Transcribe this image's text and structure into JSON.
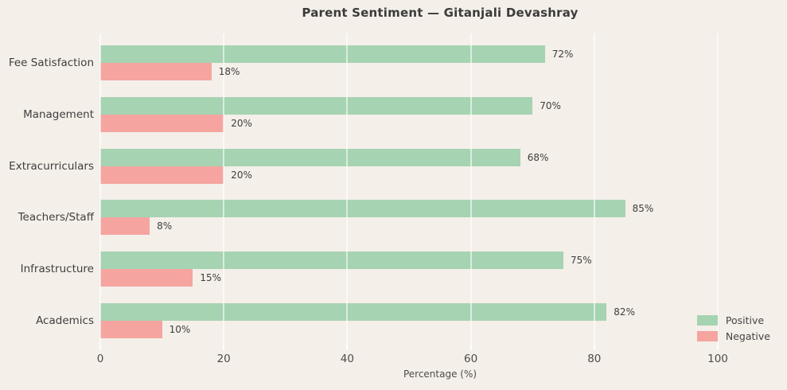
{
  "chart_data": {
    "type": "bar",
    "orientation": "horizontal",
    "title": "Parent Sentiment — Gitanjali Devashray",
    "xlabel": "Percentage (%)",
    "categories": [
      "Fee Satisfaction",
      "Management",
      "Extracurriculars",
      "Teachers/Staff",
      "Infrastructure",
      "Academics"
    ],
    "series": [
      {
        "name": "Positive",
        "color": "#a6d3b2",
        "values": [
          72,
          70,
          68,
          85,
          75,
          82
        ]
      },
      {
        "name": "Negative",
        "color": "#f5a4a0",
        "values": [
          18,
          20,
          20,
          8,
          15,
          10
        ]
      }
    ],
    "value_label_suffix": "%",
    "xlim": [
      0,
      100
    ],
    "xticks": [
      0,
      20,
      40,
      60,
      80,
      100
    ],
    "grid": true,
    "legend_position": "lower right",
    "colors": {
      "background": "#f4efe9",
      "grid_line": "#ffffff",
      "title_text": "#3b3b3b",
      "label_text": "#3e3e3e",
      "tick_text": "#4c4c4c"
    }
  }
}
